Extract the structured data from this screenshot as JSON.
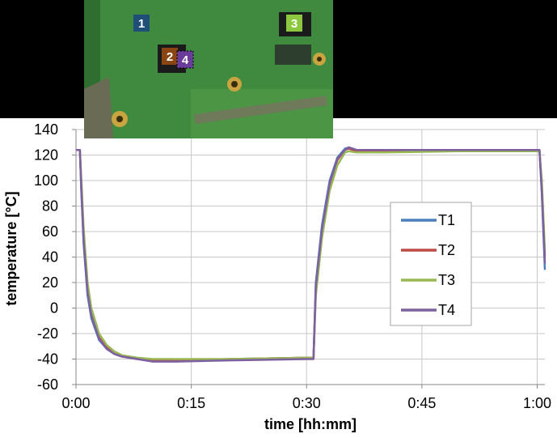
{
  "photo": {
    "markers": [
      {
        "label": "1",
        "color": "#1f4e79"
      },
      {
        "label": "2",
        "color": "#8b4513"
      },
      {
        "label": "3",
        "color": "#8dc63f"
      },
      {
        "label": "4",
        "color": "#6a3d9a"
      }
    ]
  },
  "chart_data": {
    "type": "line",
    "xlabel": "time [hh:mm]",
    "ylabel": "temperature [°C]",
    "xlim": [
      0,
      61
    ],
    "ylim": [
      -60,
      140
    ],
    "x_ticks": [
      {
        "value": 0,
        "label": "0:00"
      },
      {
        "value": 15,
        "label": "0:15"
      },
      {
        "value": 30,
        "label": "0:30"
      },
      {
        "value": 45,
        "label": "0:45"
      },
      {
        "value": 60,
        "label": "1:00"
      }
    ],
    "y_ticks": [
      -60,
      -40,
      -20,
      0,
      20,
      40,
      60,
      80,
      100,
      120,
      140
    ],
    "grid": true,
    "legend_position": "right",
    "series": [
      {
        "name": "T1",
        "color": "#4a7ebb",
        "x": [
          0,
          0.5,
          0.7,
          1.0,
          1.5,
          2.0,
          3.0,
          4.0,
          5.0,
          6.0,
          8.0,
          10.0,
          13.0,
          20.0,
          30.0,
          30.9,
          31.2,
          32.0,
          33.0,
          34.0,
          35.0,
          35.5,
          36.5,
          40.0,
          50.0,
          60.0,
          60.3,
          60.6,
          61.0
        ],
        "y": [
          124,
          124,
          90,
          50,
          10,
          -8,
          -25,
          -32,
          -36,
          -38,
          -40,
          -41,
          -41,
          -40,
          -39,
          -39,
          20,
          65,
          100,
          118,
          125,
          126,
          124,
          124,
          124,
          124,
          124,
          90,
          30
        ]
      },
      {
        "name": "T2",
        "color": "#be4b48",
        "x": [
          0,
          0.5,
          0.7,
          1.0,
          1.5,
          2.0,
          3.0,
          4.0,
          5.0,
          6.0,
          8.0,
          10.0,
          13.0,
          20.0,
          30.0,
          30.9,
          31.2,
          32.0,
          33.0,
          34.0,
          35.0,
          35.5,
          36.5,
          40.0,
          50.0,
          60.0,
          60.3,
          60.6,
          61.0
        ],
        "y": [
          124,
          124,
          95,
          55,
          15,
          -5,
          -23,
          -31,
          -36,
          -38,
          -40,
          -41,
          -41,
          -40,
          -39,
          -39,
          15,
          60,
          96,
          116,
          124,
          125,
          123,
          123,
          124,
          124,
          124,
          95,
          40
        ]
      },
      {
        "name": "T3",
        "color": "#98b954",
        "x": [
          0,
          0.5,
          0.7,
          1.0,
          1.5,
          2.0,
          3.0,
          4.0,
          5.0,
          6.0,
          8.0,
          10.0,
          13.0,
          20.0,
          30.0,
          30.9,
          31.2,
          32.0,
          33.0,
          34.0,
          35.0,
          35.5,
          36.5,
          40.0,
          50.0,
          60.0,
          60.3,
          60.6,
          61.0
        ],
        "y": [
          124,
          124,
          100,
          62,
          20,
          0,
          -20,
          -29,
          -34,
          -37,
          -39,
          -40,
          -40,
          -40,
          -39,
          -39,
          10,
          55,
          92,
          112,
          122,
          123,
          122,
          122,
          123,
          123,
          123,
          100,
          45
        ]
      },
      {
        "name": "T4",
        "color": "#7d60a0",
        "x": [
          0,
          0.5,
          0.7,
          1.0,
          1.5,
          2.0,
          3.0,
          4.0,
          5.0,
          6.0,
          8.0,
          10.0,
          13.0,
          20.0,
          30.0,
          30.9,
          31.2,
          32.0,
          33.0,
          34.0,
          35.0,
          35.5,
          36.5,
          40.0,
          50.0,
          60.0,
          60.3,
          60.6,
          61.0
        ],
        "y": [
          124,
          124,
          92,
          52,
          12,
          -6,
          -24,
          -32,
          -36,
          -38,
          -40,
          -42,
          -42,
          -41,
          -40,
          -40,
          18,
          62,
          98,
          117,
          124,
          126,
          124,
          124,
          124,
          124,
          124,
          92,
          35
        ]
      }
    ]
  }
}
